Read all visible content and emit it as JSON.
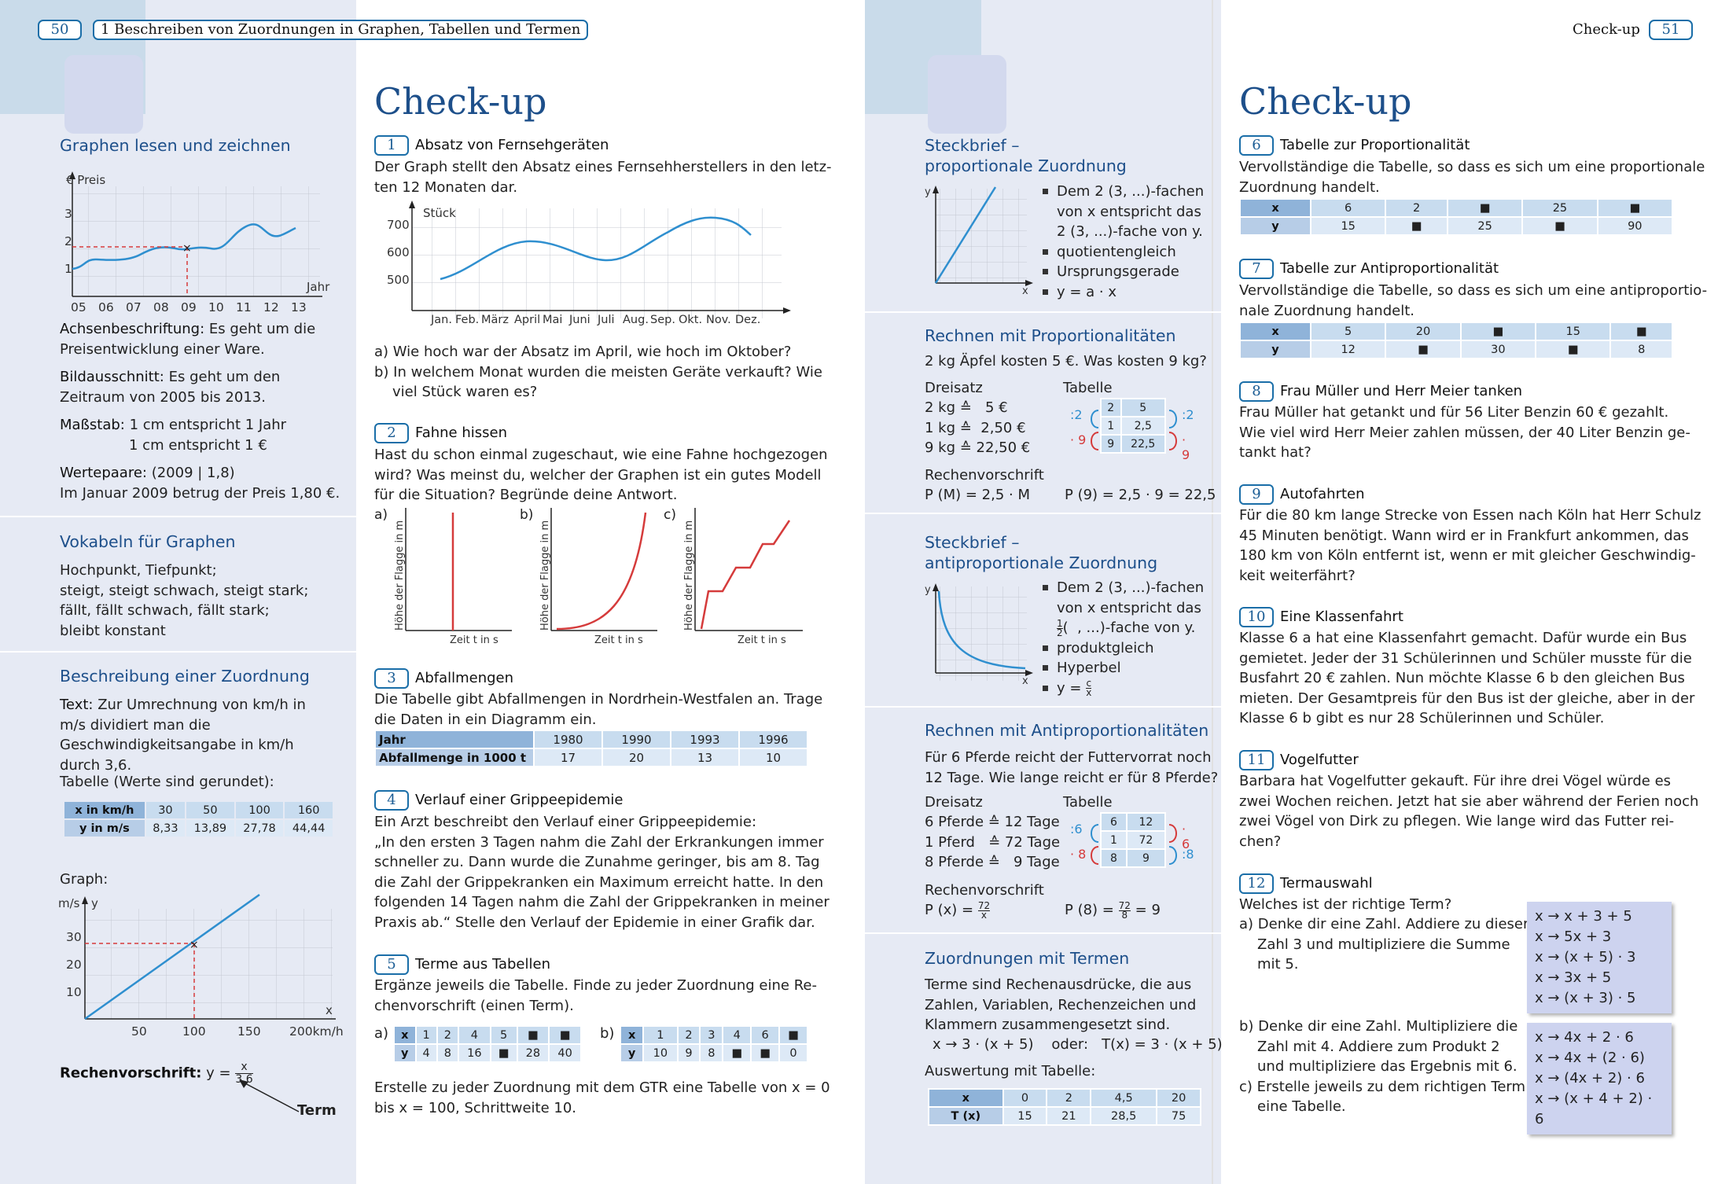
{
  "left_page": {
    "page_number": "50",
    "running_head": "1  Beschreiben von Zuordnungen in Graphen, Tabellen und Termen",
    "title": "Check-up",
    "sidebar": {
      "section1": {
        "heading": "Graphen lesen und zeichnen",
        "graph_ylabel": "€ Preis",
        "graph_xlabel": "Jahr",
        "graph_xticks": [
          "05",
          "06",
          "07",
          "08",
          "09",
          "10",
          "11",
          "12",
          "13"
        ],
        "graph_yticks": [
          "1",
          "2",
          "3"
        ],
        "p1_label": "Achsenbeschriftung:",
        "p1_text": " Es geht um die Preisentwicklung einer Ware.",
        "p2_label": "Bildausschnitt:",
        "p2_text": " Es geht um den Zeitraum von 2005 bis 2013.",
        "p3_label": "Maßstab:",
        "p3_line1": " 1 cm entspricht 1 Jahr",
        "p3_line2": "1 cm entspricht 1 €",
        "p4_label": "Wertepaare:",
        "p4_text": " (2009 | 1,8)",
        "p4_line2": "Im Januar 2009 betrug der Preis 1,80 €."
      },
      "section2": {
        "heading": "Vokabeln für Graphen",
        "lines": [
          "Hochpunkt, Tiefpunkt;",
          "steigt, steigt schwach, steigt stark;",
          "fällt, fällt schwach, fällt stark;",
          "bleibt konstant"
        ]
      },
      "section3": {
        "heading": "Beschreibung einer Zuordnung",
        "text_label": "Text:",
        "text": " Zur Umrechnung von km/h in m/s dividiert man die Geschwindigkeitsangabe in km/h durch 3,6.",
        "table_label": "Tabelle (Werte sind gerundet):",
        "table": {
          "row1_head": "x in km/h",
          "row1": [
            "30",
            "50",
            "100",
            "160"
          ],
          "row2_head": "y in m/s",
          "row2": [
            "8,33",
            "13,89",
            "27,78",
            "44,44"
          ]
        },
        "graph_label": "Graph:",
        "graph_ylabel": "m/s",
        "graph_y": "y",
        "graph_x": "x",
        "graph_xticks": [
          "50",
          "100",
          "150",
          "200km/h"
        ],
        "graph_yticks": [
          "10",
          "20",
          "30"
        ],
        "rule_label": "Rechenvorschrift:",
        "rule_lhs": "y =",
        "rule_num": "x",
        "rule_den": "3,6",
        "term_label": "Term"
      }
    },
    "tasks": {
      "t1": {
        "num": "1",
        "title": "Absatz von Fernsehgeräten",
        "intro": [
          "Der Graph stellt den Absatz eines Fernsehherstellers in den letz-",
          "ten 12 Monaten dar."
        ],
        "chart_ylabel": "Stück",
        "chart_yticks": [
          "500",
          "600",
          "700"
        ],
        "chart_months": [
          "Jan.",
          "Feb.",
          "März",
          "April",
          "Mai",
          "Juni",
          "Juli",
          "Aug.",
          "Sep.",
          "Okt.",
          "Nov.",
          "Dez."
        ],
        "qa": "a) Wie hoch war der Absatz im April, wie hoch im Oktober?",
        "qb1": "b) In welchem Monat wurden die meisten Geräte verkauft? Wie",
        "qb2": "viel Stück waren es?"
      },
      "t2": {
        "num": "2",
        "title": "Fahne hissen",
        "lines": [
          "Hast du schon einmal zugeschaut, wie eine Fahne hochgezogen",
          "wird? Was meinst du, welcher der Graphen ist ein gutes Modell",
          "für die Situation? Begründe deine Antwort."
        ],
        "labels": [
          "a)",
          "b)",
          "c)"
        ],
        "ylabel": "Höhe der Flagge in m",
        "xlabel": "Zeit t in s"
      },
      "t3": {
        "num": "3",
        "title": "Abfallmengen",
        "lines": [
          "Die Tabelle gibt Abfallmengen in Nordrhein-Westfalen an. Trage",
          "die Daten in ein Diagramm ein."
        ],
        "table": {
          "h1": "Jahr",
          "r1": [
            "1980",
            "1990",
            "1993",
            "1996"
          ],
          "h2": "Abfallmenge in 1000 t",
          "r2": [
            "17",
            "20",
            "13",
            "10"
          ]
        }
      },
      "t4": {
        "num": "4",
        "title": "Verlauf einer Grippeepidemie",
        "lines": [
          "Ein Arzt beschreibt den Verlauf einer Grippeepidemie:",
          "„In den ersten 3 Tagen nahm die Zahl der Erkrankungen immer",
          "schneller zu. Dann wurde die Zunahme geringer, bis am 8. Tag",
          "die Zahl der Grippekranken ein Maximum erreicht hatte. In den",
          "folgenden 14 Tagen nahm die Zahl der Grippekranken in meiner",
          "Praxis ab.“ Stelle den Verlauf der Epidemie in einer Grafik dar."
        ]
      },
      "t5": {
        "num": "5",
        "title": "Terme aus Tabellen",
        "lines": [
          "Ergänze jeweils die Tabelle. Finde zu jeder Zuordnung eine Re-",
          "chenvorschrift (einen Term)."
        ],
        "a_label": "a)",
        "a_x": [
          "x",
          "1",
          "2",
          "4",
          "5",
          "■",
          "■"
        ],
        "a_y": [
          "y",
          "4",
          "8",
          "16",
          "■",
          "28",
          "40"
        ],
        "b_label": "b)",
        "b_x": [
          "x",
          "1",
          "2",
          "3",
          "4",
          "6",
          "■"
        ],
        "b_y": [
          "y",
          "10",
          "9",
          "8",
          "■",
          "■",
          "0"
        ],
        "after": [
          "Erstelle zu jeder Zuordnung mit dem GTR eine Tabelle von x = 0",
          "bis x = 100, Schrittweite 10."
        ]
      }
    }
  },
  "right_page": {
    "page_number": "51",
    "running_head": "Check-up",
    "title": "Check-up",
    "sidebar": {
      "s1": {
        "heading1": "Steckbrief –",
        "heading2": "proportionale Zuordnung",
        "items": [
          "Dem 2 (3, ...)-fachen",
          "von x entspricht das",
          "2 (3, ...)-fache von y."
        ],
        "items2": [
          "quotientengleich",
          "Ursprungsgerade",
          "y = a · x"
        ],
        "ax_y": "y",
        "ax_x": "x"
      },
      "s2": {
        "heading": "Rechnen mit Proportionalitäten",
        "question": "2 kg Äpfel kosten 5 €. Was kosten 9 kg?",
        "dreisatz": "Dreisatz",
        "tabelle": "Tabelle",
        "lines": [
          "2 kg ≙   5 €",
          "1 kg ≙  2,50 €",
          "9 kg ≙ 22,50 €"
        ],
        "tab": [
          [
            "2",
            "5"
          ],
          [
            "1",
            "2,5"
          ],
          [
            "9",
            "22,5"
          ]
        ],
        "ops": [
          ":2",
          ":2",
          "· 9",
          "· 9"
        ],
        "rv": "Rechenvorschrift",
        "rv1": "P (M) = 2,5 · M",
        "rv2": "P (9) = 2,5 · 9 = 22,5"
      },
      "s3": {
        "heading1": "Steckbrief –",
        "heading2": "antiproportionale Zuordnung",
        "i1": "Dem 2 (3, ...)-fachen",
        "i2": "von x entspricht das",
        "i3": "(  , ...)-fache von y.",
        "items2": [
          "produktgleich",
          "Hyperbel"
        ],
        "last": "y =",
        "ax_y": "y",
        "ax_x": "x"
      },
      "s4": {
        "heading": "Rechnen mit Antiproportionalitäten",
        "q1": "Für 6 Pferde reicht der Futtervorrat noch",
        "q2": "12 Tage. Wie lange reicht er für 8 Pferde?",
        "dreisatz": "Dreisatz",
        "tabelle": "Tabelle",
        "lines": [
          "6 Pferde ≙ 12 Tage",
          "1 Pferd   ≙ 72 Tage",
          "8 Pferde ≙   9 Tage"
        ],
        "tab": [
          [
            "6",
            "12"
          ],
          [
            "1",
            "72"
          ],
          [
            "8",
            "9"
          ]
        ],
        "ops": [
          ":6",
          "· 6",
          "· 8",
          ":8"
        ],
        "rv": "Rechenvorschrift",
        "rv1": "P (x) =",
        "rv2": "P (8) =",
        "rv2b": "= 9"
      },
      "s5": {
        "heading": "Zuordnungen mit Termen",
        "lines": [
          "Terme sind Rechenausdrücke, die aus",
          "Zahlen, Variablen, Rechenzeichen und",
          "Klammern zusammengesetzt sind."
        ],
        "formula": "x → 3 · (x + 5)    oder:   T(x) = 3 · (x + 5)",
        "aus": "Auswertung mit Tabelle:",
        "table": {
          "h1": "x",
          "r1": [
            "0",
            "2",
            "4,5",
            "20"
          ],
          "h2": "T (x)",
          "r2": [
            "15",
            "21",
            "28,5",
            "75"
          ]
        }
      }
    },
    "tasks": {
      "t6": {
        "num": "6",
        "title": "Tabelle zur Proportionalität",
        "lines": [
          "Vervollständige die Tabelle, so dass es sich um eine proportionale",
          "Zuordnung handelt."
        ],
        "x": [
          "x",
          "6",
          "2",
          "■",
          "25",
          "■"
        ],
        "y": [
          "y",
          "15",
          "■",
          "25",
          "■",
          "90"
        ]
      },
      "t7": {
        "num": "7",
        "title": "Tabelle zur Antiproportionalität",
        "lines": [
          "Vervollständige die Tabelle, so dass es sich um eine antiproportio-",
          "nale Zuordnung handelt."
        ],
        "x": [
          "x",
          "5",
          "20",
          "■",
          "15",
          "■"
        ],
        "y": [
          "y",
          "12",
          "■",
          "30",
          "■",
          "8"
        ]
      },
      "t8": {
        "num": "8",
        "title": "Frau Müller und Herr Meier tanken",
        "lines": [
          "Frau Müller hat getankt und für 56 Liter Benzin 60 € gezahlt.",
          "Wie viel wird Herr Meier zahlen müssen, der 40 Liter Benzin ge-",
          "tankt hat?"
        ]
      },
      "t9": {
        "num": "9",
        "title": "Autofahrten",
        "lines": [
          "Für die 80 km lange Strecke von Essen nach Köln hat Herr Schulz",
          "45 Minuten benötigt. Wann wird er in Frankfurt ankommen, das",
          "180 km von Köln entfernt ist, wenn er mit gleicher Geschwindig-",
          "keit weiterfährt?"
        ]
      },
      "t10": {
        "num": "10",
        "title": "Eine Klassenfahrt",
        "lines": [
          "Klasse 6 a hat eine Klassenfahrt gemacht. Dafür wurde ein Bus",
          "gemietet. Jeder der 31 Schülerinnen und Schüler musste für die",
          "Busfahrt 20 € zahlen. Nun möchte Klasse 6 b den gleichen Bus",
          "mieten. Der Gesamtpreis für den Bus ist der gleiche, aber in der",
          "Klasse 6 b gibt es nur 28 Schülerinnen und Schüler."
        ]
      },
      "t11": {
        "num": "11",
        "title": "Vogelfutter",
        "lines": [
          "Barbara hat Vogelfutter gekauft. Für ihre drei Vögel würde es",
          "zwei Wochen reichen. Jetzt hat sie aber während der Ferien noch",
          "zwei Vögel von Dirk zu pflegen. Wie lange wird das Futter rei-",
          "chen?"
        ]
      },
      "t12": {
        "num": "12",
        "title": "Termauswahl",
        "q": "Welches ist der richtige Term?",
        "a": [
          "a) Denke dir eine Zahl. Addiere zu dieser",
          "Zahl 3 und multipliziere die Summe",
          "mit 5."
        ],
        "box1": [
          "x → x + 3 + 5",
          "x → 5x + 3",
          "x → (x + 5) · 3",
          "x → 3x + 5",
          "x → (x + 3) · 5"
        ],
        "b": [
          "b) Denke dir eine Zahl. Multipliziere die",
          "Zahl mit 4. Addiere zum Produkt 2",
          "und multipliziere das Ergebnis mit 6."
        ],
        "c": [
          "c) Erstelle jeweils zu dem richtigen Term",
          "eine Tabelle."
        ],
        "box2": [
          "x → 4x + 2 · 6",
          "x → 4x + (2 · 6)",
          "x → (4x + 2) · 6",
          "x → (x + 4 + 2) · 6"
        ]
      }
    }
  }
}
